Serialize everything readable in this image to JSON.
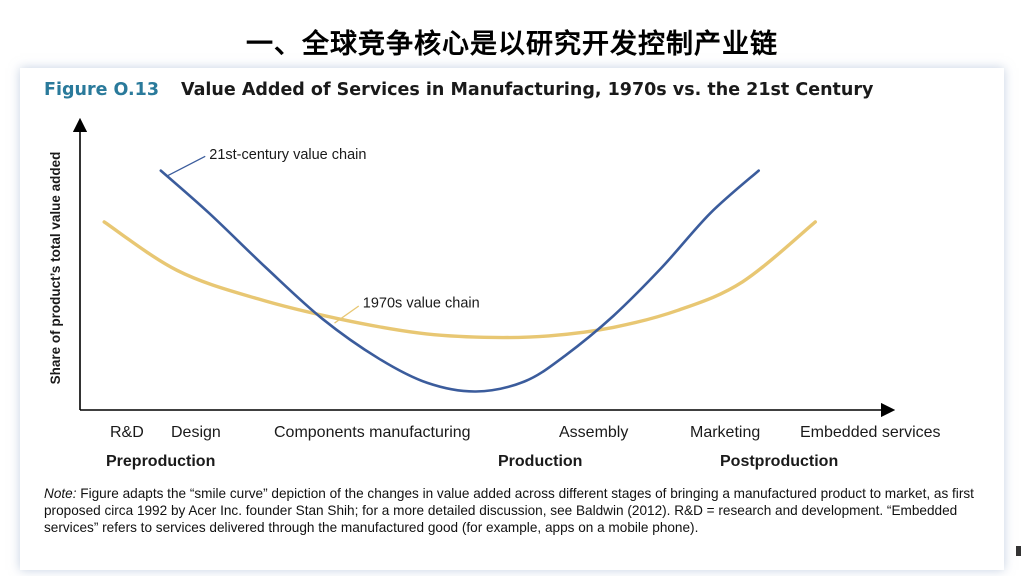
{
  "slide_title": "一、全球竞争核心是以研究开发控制产业链",
  "figure": {
    "number": "Figure O.13",
    "title": "Value Added of Services in Manufacturing, 1970s vs. the 21st Century",
    "note_label": "Note:",
    "note_text": "Figure adapts the “smile curve” depiction of the changes in value added across different stages of bringing a manufactured product to market, as first proposed circa 1992 by Acer Inc. founder Stan Shih; for a more detailed discussion, see Baldwin (2012). R&D = research and development. “Embedded services” refers to services delivered through the manufactured good (for example, apps on a mobile phone)."
  },
  "chart_data": {
    "type": "line",
    "ylabel": "Share of product’s total value added",
    "xlabel": "",
    "x_stages": [
      "R&D",
      "Design",
      "Components manufacturing",
      "Assembly",
      "Marketing",
      "Embedded services"
    ],
    "x_groups": [
      "Preproduction",
      "Production",
      "Postproduction"
    ],
    "x_range": [
      0,
      10
    ],
    "y_range": [
      0,
      10
    ],
    "series": [
      {
        "name": "21st-century value chain",
        "color": "#3b5c9c",
        "x": [
          1.0,
          1.6,
          2.3,
          3.0,
          3.7,
          4.3,
          4.9,
          5.5,
          6.0,
          6.6,
          7.2,
          7.8,
          8.4
        ],
        "y": [
          8.4,
          6.9,
          5.0,
          3.2,
          1.8,
          0.95,
          0.65,
          1.0,
          1.9,
          3.3,
          5.0,
          6.9,
          8.4
        ]
      },
      {
        "name": "1970s value chain",
        "color": "#e8c773",
        "x": [
          0.3,
          1.2,
          2.2,
          3.2,
          4.2,
          5.0,
          5.8,
          6.6,
          7.4,
          8.2,
          9.1
        ],
        "y": [
          6.6,
          4.9,
          3.9,
          3.2,
          2.7,
          2.55,
          2.6,
          2.9,
          3.5,
          4.5,
          6.6
        ]
      }
    ]
  }
}
